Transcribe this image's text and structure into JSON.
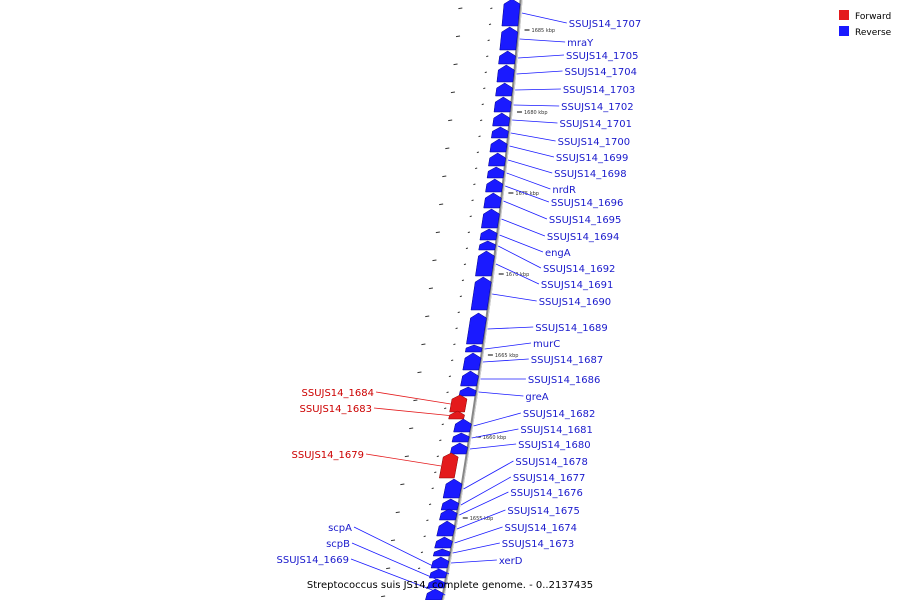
{
  "colors": {
    "forward": "#e41a1c",
    "reverse": "#1a1aff",
    "forward_label": "#cc0000",
    "reverse_label": "#1a1acc",
    "backbone": "#888888"
  },
  "legend": {
    "forward": "Forward",
    "reverse": "Reverse"
  },
  "caption": "Streptococcus suis JS14, complete genome. - 0..2137435",
  "ticks": [
    "1685 kbp",
    "1680 kbp",
    "1675 kbp",
    "1670 kbp",
    "1665 kbp",
    "1660 kbp",
    "1655 kbp"
  ],
  "genes": [
    {
      "name": "SSUJS14_1707",
      "strand": "reverse"
    },
    {
      "name": "mraY",
      "strand": "reverse"
    },
    {
      "name": "SSUJS14_1705",
      "strand": "reverse"
    },
    {
      "name": "SSUJS14_1704",
      "strand": "reverse"
    },
    {
      "name": "SSUJS14_1703",
      "strand": "reverse"
    },
    {
      "name": "SSUJS14_1702",
      "strand": "reverse"
    },
    {
      "name": "SSUJS14_1701",
      "strand": "reverse"
    },
    {
      "name": "SSUJS14_1700",
      "strand": "reverse"
    },
    {
      "name": "SSUJS14_1699",
      "strand": "reverse"
    },
    {
      "name": "SSUJS14_1698",
      "strand": "reverse"
    },
    {
      "name": "nrdR",
      "strand": "reverse"
    },
    {
      "name": "SSUJS14_1696",
      "strand": "reverse"
    },
    {
      "name": "SSUJS14_1695",
      "strand": "reverse"
    },
    {
      "name": "SSUJS14_1694",
      "strand": "reverse"
    },
    {
      "name": "engA",
      "strand": "reverse"
    },
    {
      "name": "SSUJS14_1692",
      "strand": "reverse"
    },
    {
      "name": "SSUJS14_1691",
      "strand": "reverse"
    },
    {
      "name": "SSUJS14_1690",
      "strand": "reverse"
    },
    {
      "name": "SSUJS14_1689",
      "strand": "reverse"
    },
    {
      "name": "murC",
      "strand": "reverse"
    },
    {
      "name": "SSUJS14_1687",
      "strand": "reverse"
    },
    {
      "name": "SSUJS14_1686",
      "strand": "reverse"
    },
    {
      "name": "greA",
      "strand": "reverse"
    },
    {
      "name": "SSUJS14_1684",
      "strand": "forward"
    },
    {
      "name": "SSUJS14_1683",
      "strand": "forward"
    },
    {
      "name": "SSUJS14_1682",
      "strand": "reverse"
    },
    {
      "name": "SSUJS14_1681",
      "strand": "reverse"
    },
    {
      "name": "SSUJS14_1680",
      "strand": "reverse"
    },
    {
      "name": "SSUJS14_1679",
      "strand": "forward"
    },
    {
      "name": "SSUJS14_1678",
      "strand": "reverse"
    },
    {
      "name": "SSUJS14_1677",
      "strand": "reverse"
    },
    {
      "name": "SSUJS14_1676",
      "strand": "reverse"
    },
    {
      "name": "SSUJS14_1675",
      "strand": "reverse"
    },
    {
      "name": "SSUJS14_1674",
      "strand": "reverse"
    },
    {
      "name": "SSUJS14_1673",
      "strand": "reverse"
    },
    {
      "name": "xerD",
      "strand": "reverse"
    },
    {
      "name": "scpA",
      "strand": "reverse"
    },
    {
      "name": "scpB",
      "strand": "reverse"
    },
    {
      "name": "SSUJS14_1669",
      "strand": "reverse"
    }
  ]
}
